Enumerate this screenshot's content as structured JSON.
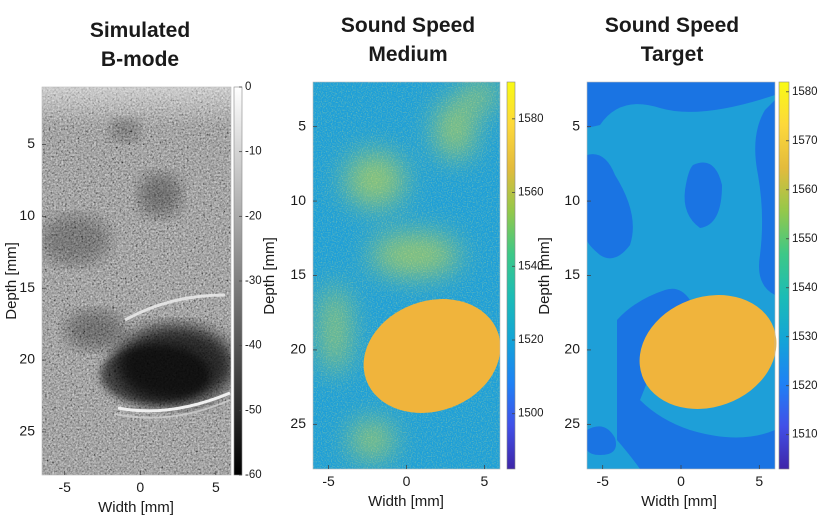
{
  "chart_data": [
    {
      "type": "heatmap",
      "title_lines": [
        "Simulated",
        "B-mode"
      ],
      "xlabel": "Width [mm]",
      "ylabel": "Depth [mm]",
      "xlim": [
        -6.5,
        6
      ],
      "ylim": [
        1,
        28
      ],
      "xticks": [
        -5,
        0,
        5
      ],
      "yticks": [
        5,
        10,
        15,
        20,
        25
      ],
      "colormap": "gray",
      "colorbar": {
        "range": [
          -60,
          0
        ],
        "ticks": [
          0,
          -10,
          -20,
          -30,
          -40,
          -50,
          -60
        ]
      }
    },
    {
      "type": "heatmap",
      "title_lines": [
        "Sound Speed",
        "Medium"
      ],
      "xlabel": "Width [mm]",
      "ylabel": "Depth [mm]",
      "xlim": [
        -6,
        6
      ],
      "ylim": [
        2,
        28
      ],
      "xticks": [
        -5,
        0,
        5
      ],
      "yticks": [
        5,
        10,
        15,
        20,
        25
      ],
      "colormap": "parula",
      "colorbar": {
        "range": [
          1485,
          1590
        ],
        "ticks": [
          1580,
          1560,
          1540,
          1520,
          1500
        ]
      }
    },
    {
      "type": "heatmap",
      "title_lines": [
        "Sound Speed",
        "Target"
      ],
      "xlabel": "Width [mm]",
      "ylabel": "Depth [mm]",
      "xlim": [
        -6,
        6
      ],
      "ylim": [
        2,
        28
      ],
      "xticks": [
        -5,
        0,
        5
      ],
      "yticks": [
        5,
        10,
        15,
        20,
        25
      ],
      "colormap": "parula",
      "colorbar": {
        "range": [
          1503,
          1582
        ],
        "ticks": [
          1580,
          1570,
          1560,
          1550,
          1540,
          1530,
          1520,
          1510
        ]
      }
    }
  ],
  "colors": {
    "background_speed": "#1e9fd8",
    "low_speed_region": "#1a74e3",
    "inclusion": "#f0b43c",
    "mid_speed_blob": "#9ac86a",
    "parula_stops": [
      "#3e26a8",
      "#4150e8",
      "#1e82f5",
      "#13a4d7",
      "#1cbcb6",
      "#3dc887",
      "#94c84a",
      "#e3bb3c",
      "#fdd83b",
      "#f9fa14"
    ]
  }
}
